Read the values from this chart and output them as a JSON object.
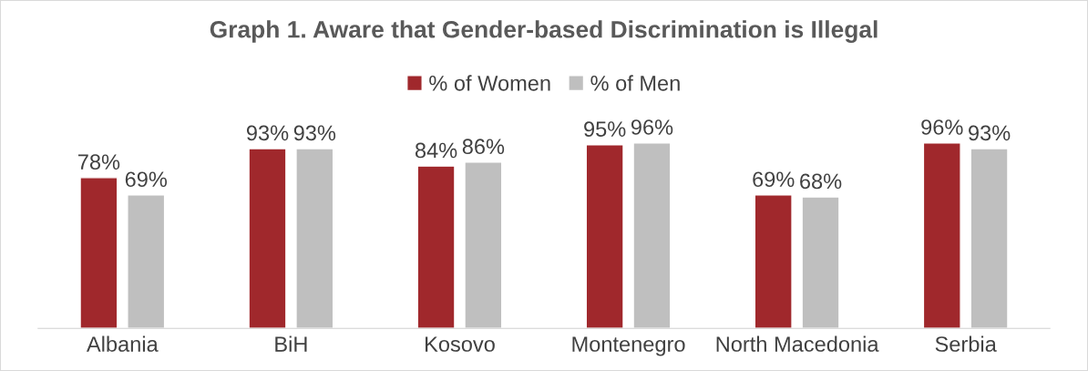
{
  "chart_data": {
    "type": "bar",
    "title": "Graph 1. Aware that Gender-based Discrimination is Illegal",
    "categories": [
      "Albania",
      "BiH",
      "Kosovo",
      "Montenegro",
      "North Macedonia",
      "Serbia"
    ],
    "series": [
      {
        "name": "% of Women",
        "color": "#a0282c",
        "values": [
          78,
          93,
          84,
          95,
          69,
          96
        ],
        "value_labels": [
          "78%",
          "93%",
          "84%",
          "95%",
          "69%",
          "96%"
        ]
      },
      {
        "name": "% of Men",
        "color": "#bfbfbf",
        "values": [
          69,
          93,
          86,
          96,
          68,
          93
        ],
        "value_labels": [
          "69%",
          "93%",
          "86%",
          "96%",
          "68%",
          "93%"
        ]
      }
    ],
    "legend": "top",
    "grid": false
  }
}
